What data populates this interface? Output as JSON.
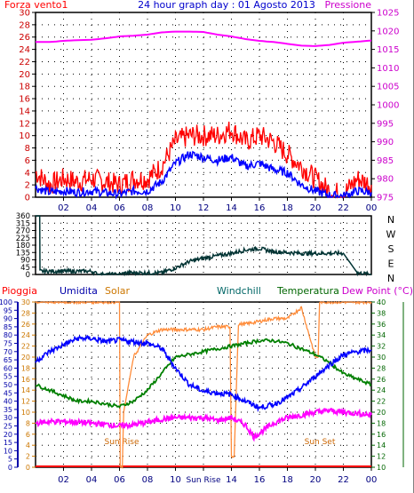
{
  "header": {
    "left_label": "Forza vento1",
    "title": "24 hour graph day : 01 Agosto 2013",
    "right_label": "Pressione"
  },
  "colors": {
    "wind": "#ff0000",
    "wind_avg": "#0000ff",
    "pressure": "#ff00ff",
    "direction": "#003333",
    "pioggia": "#ff0000",
    "umidita": "#0000aa",
    "solar": "#cc7700",
    "windchill": "#006666",
    "temperatura": "#006600",
    "dewpoint": "#ff00ff",
    "temp_line": "#008000",
    "solar_line": "#ff8c3a",
    "grid": "#000000",
    "frame": "#000000"
  },
  "chart_data": [
    {
      "type": "line",
      "title": "24 hour graph day : 01 Agosto 2013",
      "xlabel": "",
      "x_ticks": [
        "02",
        "04",
        "06",
        "08",
        "10",
        "12",
        "14",
        "16",
        "18",
        "20",
        "22",
        "00"
      ],
      "x_range": [
        0,
        24
      ],
      "left_axis": {
        "label": "Forza vento1",
        "ylim": [
          0,
          30
        ],
        "ticks": [
          0,
          2,
          4,
          6,
          8,
          10,
          12,
          14,
          16,
          18,
          20,
          22,
          24,
          26,
          28,
          30
        ]
      },
      "right_axis": {
        "label": "Pressione",
        "ylim": [
          975,
          1025
        ],
        "ticks": [
          975,
          980,
          985,
          990,
          995,
          1000,
          1005,
          1010,
          1015,
          1020,
          1025
        ]
      },
      "series": [
        {
          "key": "gust",
          "axis": "left",
          "points": [
            [
              0,
              4
            ],
            [
              1,
              2
            ],
            [
              2,
              3
            ],
            [
              3,
              2.5
            ],
            [
              4,
              3
            ],
            [
              5,
              2.5
            ],
            [
              6,
              2
            ],
            [
              7,
              3
            ],
            [
              8,
              3
            ],
            [
              9,
              5
            ],
            [
              9.5,
              7
            ],
            [
              10,
              9
            ],
            [
              11,
              10
            ],
            [
              12,
              10
            ],
            [
              13,
              10
            ],
            [
              14,
              11
            ],
            [
              15,
              9
            ],
            [
              16,
              10
            ],
            [
              17,
              9
            ],
            [
              18,
              7
            ],
            [
              19,
              5
            ],
            [
              20,
              3
            ],
            [
              21,
              1
            ],
            [
              22,
              0.5
            ],
            [
              23,
              3
            ],
            [
              24,
              2
            ]
          ]
        },
        {
          "key": "average",
          "axis": "left",
          "points": [
            [
              0,
              1.5
            ],
            [
              1,
              0.8
            ],
            [
              2,
              1
            ],
            [
              3,
              0.8
            ],
            [
              4,
              1
            ],
            [
              5,
              0.7
            ],
            [
              6,
              0.5
            ],
            [
              7,
              1
            ],
            [
              8,
              1
            ],
            [
              9,
              2.5
            ],
            [
              9.5,
              4
            ],
            [
              10,
              5.5
            ],
            [
              11,
              7
            ],
            [
              12,
              6.5
            ],
            [
              13,
              6
            ],
            [
              14,
              6.5
            ],
            [
              15,
              5
            ],
            [
              16,
              5.5
            ],
            [
              17,
              4.5
            ],
            [
              18,
              4
            ],
            [
              19,
              2
            ],
            [
              20,
              1
            ],
            [
              21,
              0.3
            ],
            [
              22,
              0.2
            ],
            [
              23,
              1
            ],
            [
              24,
              0.8
            ]
          ]
        },
        {
          "key": "pressure",
          "axis": "right",
          "points": [
            [
              0,
              1017
            ],
            [
              1,
              1017
            ],
            [
              2,
              1017.3
            ],
            [
              3,
              1017.5
            ],
            [
              4,
              1017.6
            ],
            [
              5,
              1018
            ],
            [
              6,
              1018.5
            ],
            [
              7,
              1018.7
            ],
            [
              8,
              1019
            ],
            [
              9,
              1019.6
            ],
            [
              10,
              1019.8
            ],
            [
              11,
              1019.8
            ],
            [
              12,
              1019.7
            ],
            [
              13,
              1019
            ],
            [
              14,
              1018.5
            ],
            [
              15,
              1017.8
            ],
            [
              16,
              1017.3
            ],
            [
              17,
              1017
            ],
            [
              18,
              1016.5
            ],
            [
              19,
              1016
            ],
            [
              20,
              1015.9
            ],
            [
              21,
              1016.2
            ],
            [
              22,
              1016.8
            ],
            [
              23,
              1017.1
            ],
            [
              24,
              1017.4
            ]
          ]
        }
      ]
    },
    {
      "type": "line",
      "title": "",
      "x_range": [
        0,
        24
      ],
      "left_axis": {
        "ylim": [
          0,
          360
        ],
        "ticks": [
          0,
          45,
          90,
          135,
          180,
          225,
          270,
          315,
          360
        ]
      },
      "right_axis": {
        "labels": [
          "N",
          "W",
          "S",
          "E",
          "N"
        ]
      },
      "series": [
        {
          "key": "direction",
          "points": [
            [
              0,
              360
            ],
            [
              0.3,
              360
            ],
            [
              0.32,
              20
            ],
            [
              2,
              20
            ],
            [
              4,
              20
            ],
            [
              4.5,
              0
            ],
            [
              5,
              0
            ],
            [
              6,
              0
            ],
            [
              6.5,
              10
            ],
            [
              7,
              10
            ],
            [
              8,
              10
            ],
            [
              9,
              10
            ],
            [
              10,
              40
            ],
            [
              11,
              80
            ],
            [
              12,
              100
            ],
            [
              13,
              115
            ],
            [
              14,
              130
            ],
            [
              15,
              150
            ],
            [
              16,
              160
            ],
            [
              17,
              140
            ],
            [
              18,
              135
            ],
            [
              19,
              130
            ],
            [
              20,
              130
            ],
            [
              21,
              130
            ],
            [
              22,
              130
            ],
            [
              23,
              10
            ],
            [
              24,
              0
            ]
          ]
        }
      ]
    },
    {
      "type": "line",
      "title": "",
      "x_ticks": [
        "02",
        "04",
        "06",
        "08",
        "10",
        "Sun Rise",
        "14",
        "16",
        "18",
        "20",
        "22",
        "00"
      ],
      "x_range": [
        0,
        24
      ],
      "legend": [
        "Pioggia",
        "Umidita",
        "Solar",
        "Windchill",
        "Temperatura",
        "Dew Point (°C)"
      ],
      "axes": {
        "umidita": {
          "ylim": [
            0,
            100
          ],
          "ticks": [
            0,
            5,
            10,
            15,
            20,
            25,
            30,
            35,
            40,
            45,
            50,
            55,
            60,
            65,
            70,
            75,
            80,
            85,
            90,
            95,
            100
          ]
        },
        "solar": {
          "ylim": [
            0,
            30
          ],
          "ticks": [
            0,
            2,
            4,
            6,
            8,
            10,
            12,
            14,
            16,
            18,
            20,
            22,
            24,
            26,
            28,
            30
          ]
        },
        "temperatura": {
          "ylim": [
            10,
            40
          ],
          "ticks": [
            10,
            12,
            14,
            16,
            18,
            20,
            22,
            24,
            26,
            28,
            30,
            32,
            34,
            36,
            38,
            40
          ]
        }
      },
      "annotations": [
        {
          "text": "Sun Rise",
          "x": 6.1
        },
        {
          "text": "Sun Set",
          "x": 20.2
        }
      ],
      "series": [
        {
          "key": "umidita",
          "axis": "umidita",
          "points": [
            [
              0,
              64
            ],
            [
              1,
              70
            ],
            [
              2,
              74
            ],
            [
              3,
              78
            ],
            [
              4,
              78
            ],
            [
              5,
              76
            ],
            [
              6,
              77
            ],
            [
              7,
              76
            ],
            [
              8,
              75
            ],
            [
              9,
              72
            ],
            [
              10,
              60
            ],
            [
              11,
              50
            ],
            [
              12,
              46
            ],
            [
              13,
              45
            ],
            [
              14,
              44
            ],
            [
              15,
              40
            ],
            [
              15.5,
              38
            ],
            [
              16,
              36
            ],
            [
              17,
              38
            ],
            [
              18,
              42
            ],
            [
              19,
              48
            ],
            [
              20,
              55
            ],
            [
              21,
              62
            ],
            [
              22,
              68
            ],
            [
              23,
              70
            ],
            [
              24,
              71
            ]
          ]
        },
        {
          "key": "temperatura",
          "axis": "temperatura",
          "points": [
            [
              0,
              25
            ],
            [
              1,
              24
            ],
            [
              2,
              23
            ],
            [
              3,
              22
            ],
            [
              4,
              22
            ],
            [
              5,
              21.5
            ],
            [
              6,
              21
            ],
            [
              7,
              22
            ],
            [
              8,
              24
            ],
            [
              9,
              27
            ],
            [
              10,
              30
            ],
            [
              11,
              30.5
            ],
            [
              12,
              31
            ],
            [
              13,
              31.5
            ],
            [
              14,
              32
            ],
            [
              15,
              32.5
            ],
            [
              16,
              33
            ],
            [
              17,
              33
            ],
            [
              18,
              32.5
            ],
            [
              19,
              31.5
            ],
            [
              20,
              30.5
            ],
            [
              21,
              29
            ],
            [
              22,
              27
            ],
            [
              23,
              26
            ],
            [
              24,
              25
            ]
          ]
        },
        {
          "key": "dewpoint",
          "axis": "temperatura",
          "points": [
            [
              0,
              18
            ],
            [
              1,
              18.3
            ],
            [
              2,
              18.3
            ],
            [
              3,
              18.2
            ],
            [
              4,
              18
            ],
            [
              5,
              17.8
            ],
            [
              6,
              17.5
            ],
            [
              7,
              17.7
            ],
            [
              8,
              18.2
            ],
            [
              9,
              18.7
            ],
            [
              10,
              19
            ],
            [
              11,
              19
            ],
            [
              12,
              19
            ],
            [
              13,
              18.5
            ],
            [
              14,
              19
            ],
            [
              15,
              17.7
            ],
            [
              15.6,
              15.5
            ],
            [
              16,
              16.2
            ],
            [
              17,
              18
            ],
            [
              18,
              19
            ],
            [
              19,
              19.5
            ],
            [
              20,
              20
            ],
            [
              21,
              20.3
            ],
            [
              22,
              20
            ],
            [
              23,
              19.8
            ],
            [
              24,
              19.5
            ]
          ]
        },
        {
          "key": "solar",
          "axis": "solar",
          "points": [
            [
              0,
              30
            ],
            [
              6,
              30
            ],
            [
              6.05,
              0
            ],
            [
              6.2,
              0
            ],
            [
              6.3,
              10
            ],
            [
              7,
              20
            ],
            [
              8,
              24
            ],
            [
              9,
              25
            ],
            [
              10,
              25
            ],
            [
              11,
              25
            ],
            [
              12,
              25
            ],
            [
              13,
              25.5
            ],
            [
              13.9,
              25.5
            ],
            [
              14,
              2
            ],
            [
              14.2,
              2
            ],
            [
              14.5,
              26
            ],
            [
              15,
              26
            ],
            [
              16,
              26.5
            ],
            [
              17,
              27
            ],
            [
              18,
              27
            ],
            [
              18.5,
              28
            ],
            [
              19,
              29
            ],
            [
              20,
              20
            ],
            [
              20.2,
              20
            ],
            [
              20.3,
              30
            ],
            [
              24,
              30
            ]
          ]
        }
      ]
    }
  ]
}
